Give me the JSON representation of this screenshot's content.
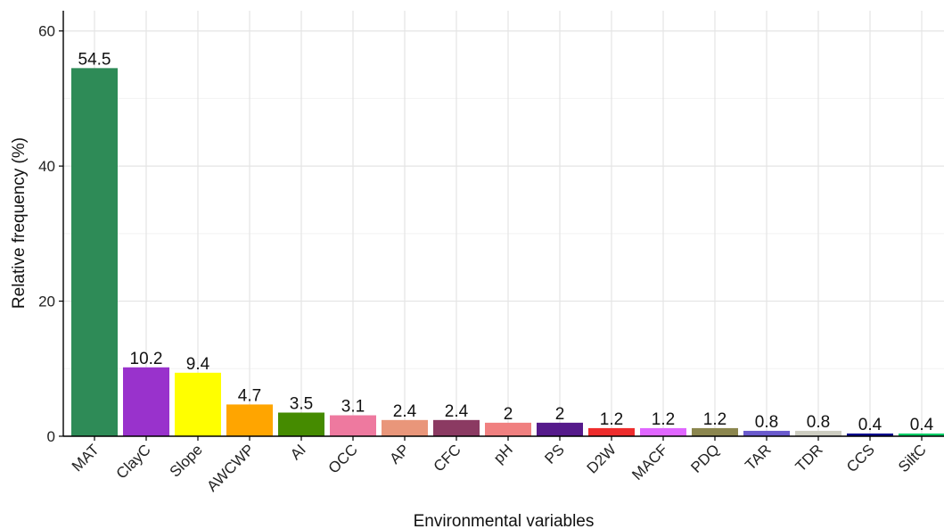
{
  "chart_data": {
    "type": "bar",
    "xlabel": "Environmental variables",
    "ylabel": "Relative frequency (%)",
    "ylim": [
      0,
      63
    ],
    "yticks": [
      0,
      20,
      40,
      60
    ],
    "grid": true,
    "legend": "none",
    "categories": [
      "MAT",
      "ClayC",
      "Slope",
      "AWCWP",
      "AI",
      "OCC",
      "AP",
      "CFC",
      "pH",
      "PS",
      "D2W",
      "MACF",
      "PDQ",
      "TAR",
      "TDR",
      "CCS",
      "SiltC"
    ],
    "values": [
      54.5,
      10.2,
      9.4,
      4.7,
      3.5,
      3.1,
      2.4,
      2.4,
      2,
      2,
      1.2,
      1.2,
      1.2,
      0.8,
      0.8,
      0.4,
      0.4
    ],
    "value_labels": [
      "54.5",
      "10.2",
      "9.4",
      "4.7",
      "3.5",
      "3.1",
      "2.4",
      "2.4",
      "2",
      "2",
      "1.2",
      "1.2",
      "1.2",
      "0.8",
      "0.8",
      "0.4",
      "0.4"
    ],
    "colors": [
      "#2e8b57",
      "#9932cc",
      "#ffff00",
      "#ffa500",
      "#458b00",
      "#ee799f",
      "#e9967a",
      "#8b3a62",
      "#f08080",
      "#551a8b",
      "#ee2c2c",
      "#e066ff",
      "#8b864e",
      "#6a5acd",
      "#cdcdc1",
      "#00008b",
      "#00cd66"
    ]
  }
}
